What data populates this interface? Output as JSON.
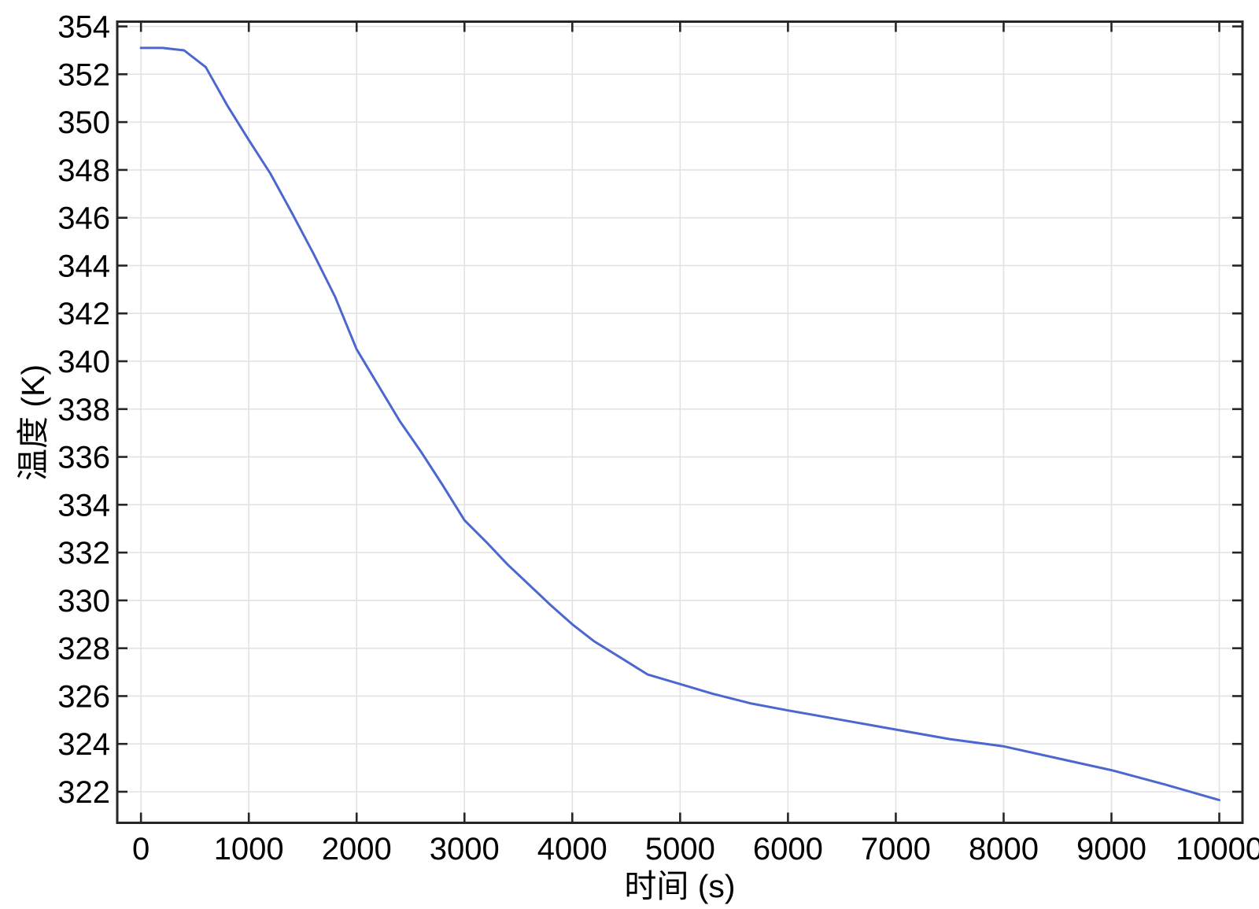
{
  "chart_data": {
    "type": "line",
    "title": "",
    "xlabel": "时间  (s)",
    "ylabel": "温度  (K)",
    "x_ticks": [
      0,
      1000,
      2000,
      3000,
      4000,
      5000,
      6000,
      7000,
      8000,
      9000,
      10000
    ],
    "x_tick_labels": [
      "0",
      "1000",
      "2000",
      "3000",
      "4000",
      "5000",
      "6000",
      "7000",
      "8000",
      "9000",
      "10000"
    ],
    "y_ticks": [
      322,
      324,
      326,
      328,
      330,
      332,
      334,
      336,
      338,
      340,
      342,
      344,
      346,
      348,
      350,
      352,
      354
    ],
    "y_tick_labels": [
      "322",
      "324",
      "326",
      "328",
      "330",
      "332",
      "334",
      "336",
      "338",
      "340",
      "342",
      "344",
      "346",
      "348",
      "350",
      "352",
      "354"
    ],
    "xlim": [
      -220,
      10215
    ],
    "ylim": [
      320.7,
      354.2
    ],
    "grid": true,
    "legend_position": "none",
    "colors": {
      "line": "#4c68ce",
      "grid": "#e2e2e2",
      "axis": "#262626",
      "text": "#000000",
      "background": "#ffffff"
    },
    "series": [
      {
        "name": "温度",
        "x": [
          0,
          200,
          400,
          600,
          800,
          1000,
          1200,
          1400,
          1600,
          1800,
          2000,
          2200,
          2400,
          2600,
          2800,
          3000,
          3200,
          3400,
          3600,
          3800,
          4000,
          4200,
          4450,
          4700,
          5000,
          5300,
          5650,
          6000,
          6500,
          7000,
          7500,
          8000,
          8500,
          9000,
          9500,
          10000
        ],
        "y": [
          353.1,
          353.1,
          353.0,
          352.3,
          350.7,
          349.25,
          347.85,
          346.2,
          344.5,
          342.7,
          340.5,
          339.0,
          337.5,
          336.2,
          334.8,
          333.35,
          332.45,
          331.5,
          330.65,
          329.8,
          329.0,
          328.3,
          327.6,
          326.9,
          326.5,
          326.1,
          325.7,
          325.4,
          325.0,
          324.6,
          324.2,
          323.9,
          323.4,
          322.9,
          322.3,
          321.65
        ]
      }
    ]
  }
}
